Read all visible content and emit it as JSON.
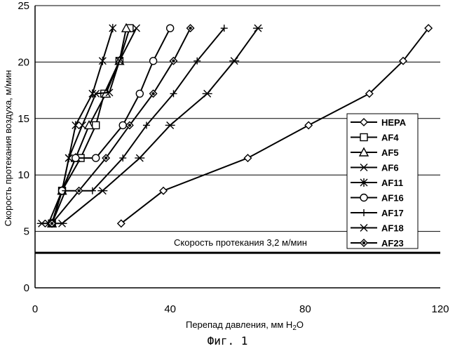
{
  "chart_data": {
    "type": "line",
    "xlabel": "Перепад давления, мм H",
    "xlabel_sub": "2",
    "xlabel_end": "O",
    "ylabel": "Скорость протекания воздуха, м/мин",
    "xlim": [
      0,
      120
    ],
    "ylim": [
      0,
      25
    ],
    "x_ticks": [
      0,
      40,
      80,
      120
    ],
    "y_ticks": [
      0,
      5,
      10,
      15,
      20,
      25
    ],
    "grid": "horizontal",
    "legend_position": "right",
    "reference_line": {
      "y": 3.1,
      "label": "Скорость протекания 3,2 м/мин"
    },
    "series": [
      {
        "name": "HEPA",
        "marker": "diamond-open",
        "points": [
          [
            25.5,
            5.7
          ],
          [
            38,
            8.6
          ],
          [
            63,
            11.5
          ],
          [
            81,
            14.4
          ],
          [
            99,
            17.2
          ],
          [
            109,
            20.1
          ],
          [
            116.5,
            23
          ]
        ]
      },
      {
        "name": "AF4",
        "marker": "square-open",
        "points": [
          [
            5,
            5.7
          ],
          [
            8,
            8.6
          ],
          [
            13.5,
            11.5
          ],
          [
            18,
            14.4
          ],
          [
            20.5,
            17.2
          ],
          [
            25,
            20.1
          ],
          [
            28,
            23
          ]
        ]
      },
      {
        "name": "AF5",
        "marker": "triangle-open",
        "points": [
          [
            5,
            5.7
          ],
          [
            8,
            8.6
          ],
          [
            12,
            11.5
          ],
          [
            16,
            14.4
          ],
          [
            21,
            17.2
          ],
          [
            25,
            20.1
          ],
          [
            27,
            23
          ]
        ]
      },
      {
        "name": "AF6",
        "marker": "x",
        "points": [
          [
            4,
            5.7
          ],
          [
            8,
            8.6
          ],
          [
            10,
            11.5
          ],
          [
            14,
            14.4
          ],
          [
            18,
            17.2
          ],
          [
            22,
            17.3
          ],
          [
            25,
            20.1
          ],
          [
            30,
            23
          ]
        ]
      },
      {
        "name": "AF11",
        "marker": "asterisk",
        "points": [
          [
            5,
            5.7
          ],
          [
            8,
            8.6
          ],
          [
            10,
            11.5
          ],
          [
            12,
            14.4
          ],
          [
            17,
            17.2
          ],
          [
            20,
            20.1
          ],
          [
            23,
            23
          ]
        ]
      },
      {
        "name": "AF16",
        "marker": "circle-open",
        "points": [
          [
            5,
            5.7
          ],
          [
            8,
            8.6
          ],
          [
            12,
            11.5
          ],
          [
            18,
            11.5
          ],
          [
            26,
            14.4
          ],
          [
            31,
            17.2
          ],
          [
            35,
            20.1
          ],
          [
            40,
            23
          ]
        ]
      },
      {
        "name": "AF17",
        "marker": "plus",
        "points": [
          [
            5,
            5.7
          ],
          [
            9,
            8.6
          ],
          [
            17,
            8.6
          ],
          [
            26,
            11.5
          ],
          [
            33,
            14.4
          ],
          [
            41,
            17.2
          ],
          [
            48,
            20.1
          ],
          [
            56,
            23
          ]
        ]
      },
      {
        "name": "AF18",
        "marker": "x-bar",
        "points": [
          [
            2,
            5.7
          ],
          [
            8,
            5.7
          ],
          [
            20,
            8.6
          ],
          [
            31,
            11.5
          ],
          [
            40,
            14.4
          ],
          [
            51,
            17.2
          ],
          [
            59,
            20.1
          ],
          [
            66,
            23
          ]
        ]
      },
      {
        "name": "AF23",
        "marker": "diamond-dot",
        "points": [
          [
            5,
            5.7
          ],
          [
            13,
            8.6
          ],
          [
            21,
            11.5
          ],
          [
            28,
            14.4
          ],
          [
            35,
            17.2
          ],
          [
            41,
            20.1
          ],
          [
            46,
            23
          ]
        ]
      }
    ]
  },
  "caption": "Фиг. 1"
}
